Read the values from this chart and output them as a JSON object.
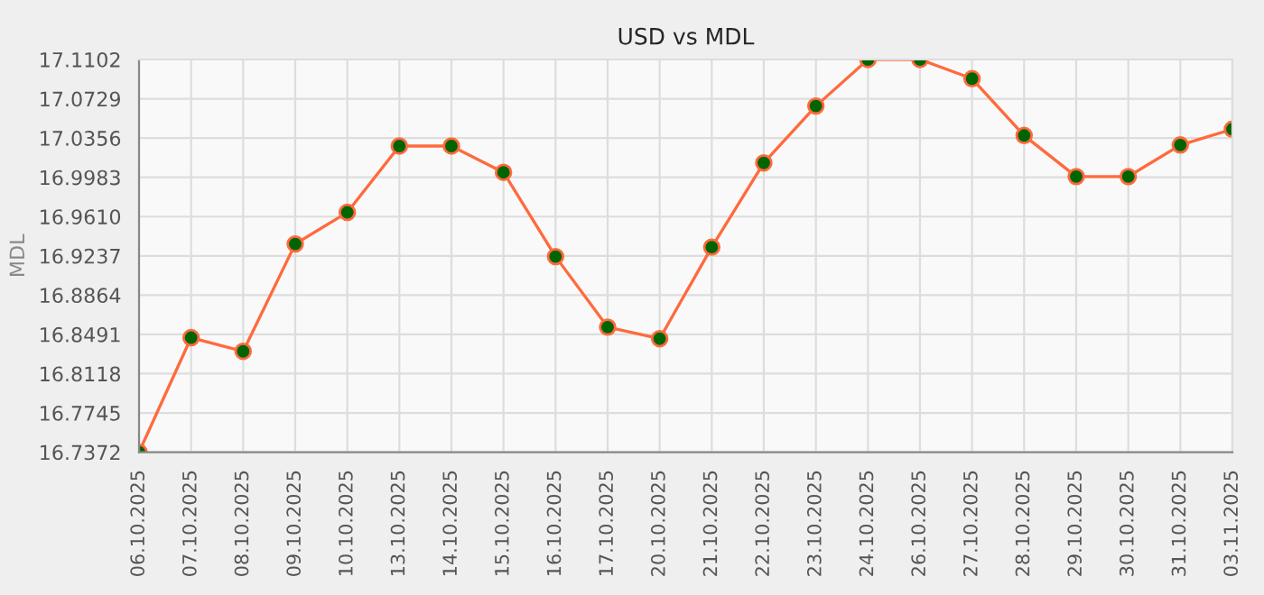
{
  "chart_data": {
    "type": "line",
    "title": "USD vs MDL",
    "ylabel": "MDL",
    "categories": [
      "06.10.2025",
      "07.10.2025",
      "08.10.2025",
      "09.10.2025",
      "10.10.2025",
      "13.10.2025",
      "14.10.2025",
      "15.10.2025",
      "16.10.2025",
      "17.10.2025",
      "20.10.2025",
      "21.10.2025",
      "22.10.2025",
      "23.10.2025",
      "24.10.2025",
      "26.10.2025",
      "27.10.2025",
      "28.10.2025",
      "29.10.2025",
      "30.10.2025",
      "31.10.2025",
      "03.11.2025"
    ],
    "series": [
      {
        "color": "#ff6a3d",
        "values": [
          16.7372,
          16.846,
          16.833,
          16.935,
          16.965,
          17.028,
          17.028,
          17.003,
          16.923,
          16.856,
          16.845,
          16.932,
          17.012,
          17.066,
          17.1102,
          17.1102,
          17.092,
          17.038,
          16.999,
          16.999,
          17.029,
          17.044
        ]
      }
    ],
    "ylim": [
      16.7372,
      17.1102
    ],
    "yticks": [
      {
        "value": 16.7372,
        "label": "16.7372"
      },
      {
        "value": 16.7745,
        "label": "16.7745"
      },
      {
        "value": 16.8118,
        "label": "16.8118"
      },
      {
        "value": 16.8491,
        "label": "16.8491"
      },
      {
        "value": 16.8864,
        "label": "16.8864"
      },
      {
        "value": 16.9237,
        "label": "16.9237"
      },
      {
        "value": 16.961,
        "label": "16.9610"
      },
      {
        "value": 16.9983,
        "label": "16.9983"
      },
      {
        "value": 17.0356,
        "label": "17.0356"
      },
      {
        "value": 17.0729,
        "label": "17.0729"
      },
      {
        "value": 17.1102,
        "label": "17.1102"
      }
    ],
    "grid": true,
    "marker": "circle",
    "line_style": "solid"
  }
}
